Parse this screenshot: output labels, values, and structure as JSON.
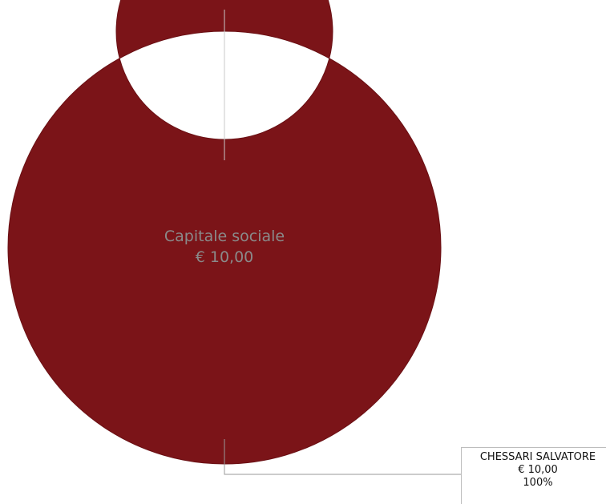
{
  "chart_data": {
    "type": "pie",
    "title": "Capitale sociale",
    "total_label": "€ 10,00",
    "slices": [
      {
        "label": "CHESSARI SALVATORE",
        "amount_label": "€ 10,00",
        "percent_label": "100%",
        "value": 100,
        "color": "#7b1418"
      }
    ]
  }
}
